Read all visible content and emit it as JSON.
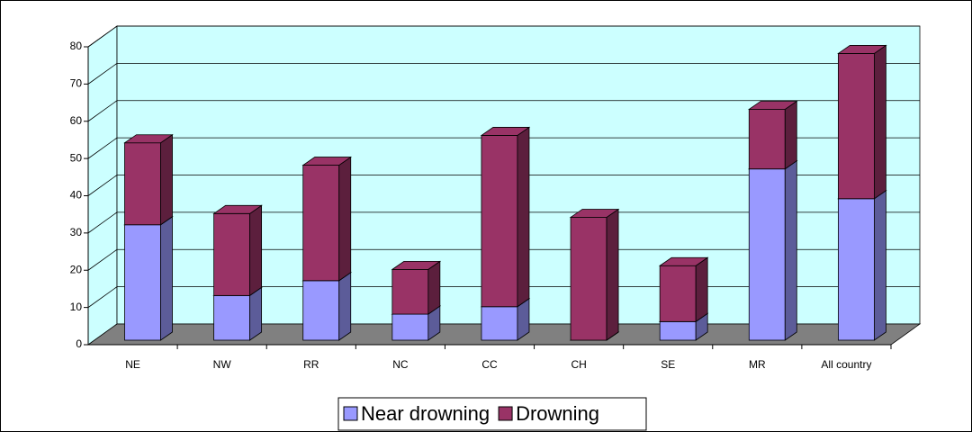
{
  "chart_data": {
    "type": "bar3d_stacked",
    "categories": [
      "NE",
      "NW",
      "RR",
      "NC",
      "CC",
      "CH",
      "SE",
      "MR",
      "All country"
    ],
    "series": [
      {
        "name": "Near drowning",
        "color": "#9999ff",
        "values": [
          31,
          12,
          16,
          7,
          9,
          0,
          5,
          46,
          38
        ]
      },
      {
        "name": "Drowning",
        "color": "#993366",
        "values": [
          22,
          22,
          31,
          12,
          46,
          33,
          15,
          16,
          39
        ]
      }
    ],
    "ylim": [
      0,
      80
    ],
    "yticks": [
      0,
      10,
      20,
      30,
      40,
      50,
      60,
      70,
      80
    ],
    "grid": true
  }
}
